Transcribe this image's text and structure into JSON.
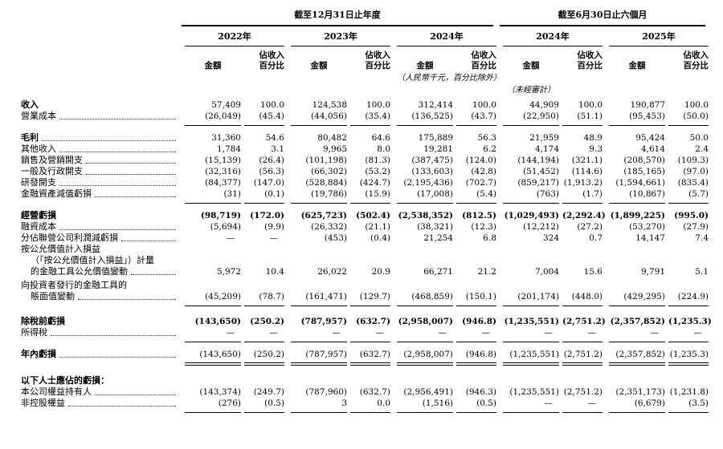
{
  "table": {
    "unit_note": "（人民幣千元，百分比除外）",
    "unaudited_note": "（未經審計）",
    "groups": [
      {
        "title": "截至12月31日止年度",
        "years": [
          "2022年",
          "2023年",
          "2024年"
        ]
      },
      {
        "title": "截至6月30日止六個月",
        "years": [
          "2024年",
          "2025年"
        ]
      }
    ],
    "col_headers": {
      "amount": "金額",
      "pct_line1": "佔收入",
      "pct_line2": "百分比"
    },
    "rows": [
      {
        "label_lines": [
          "收入"
        ],
        "bold_label": true,
        "dots": false,
        "values": [
          "57,409",
          "100.0",
          "124,538",
          "100.0",
          "312,414",
          "100.0",
          "44,909",
          "100.0",
          "190,877",
          "100.0"
        ]
      },
      {
        "label_lines": [
          "營業成本"
        ],
        "dots": true,
        "values": [
          "(26,049)",
          "(45.4)",
          "(44,056)",
          "(35.4)",
          "(136,525)",
          "(43.7)",
          "(22,950)",
          "(51.1)",
          "(95,453)",
          "(50.0)"
        ]
      },
      {
        "type": "rule"
      },
      {
        "type": "gap",
        "h": 4
      },
      {
        "label_lines": [
          "毛利"
        ],
        "bold_label": true,
        "dots": true,
        "values": [
          "31,360",
          "54.6",
          "80,482",
          "64.6",
          "175,889",
          "56.3",
          "21,959",
          "48.9",
          "95,424",
          "50.0"
        ]
      },
      {
        "label_lines": [
          "其他收入"
        ],
        "dots": true,
        "values": [
          "1,784",
          "3.1",
          "9,965",
          "8.0",
          "19,281",
          "6.2",
          "4,174",
          "9.3",
          "4,614",
          "2.4"
        ]
      },
      {
        "label_lines": [
          "銷售及營銷開支"
        ],
        "dots": true,
        "values": [
          "(15,139)",
          "(26.4)",
          "(101,198)",
          "(81.3)",
          "(387,475)",
          "(124.0)",
          "(144,194)",
          "(321.1)",
          "(208,570)",
          "(109.3)"
        ]
      },
      {
        "label_lines": [
          "一般及行政開支"
        ],
        "dots": true,
        "values": [
          "(32,316)",
          "(56.3)",
          "(66,302)",
          "(53.2)",
          "(133,603)",
          "(42.8)",
          "(51,452)",
          "(114.6)",
          "(185,165)",
          "(97.0)"
        ]
      },
      {
        "label_lines": [
          "研發開支"
        ],
        "dots": true,
        "values": [
          "(84,377)",
          "(147.0)",
          "(528,884)",
          "(424.7)",
          "(2,195,436)",
          "(702.7)",
          "(859,217)",
          "(1,913.2)",
          "(1,594,661)",
          "(835.4)"
        ]
      },
      {
        "label_lines": [
          "金融資產減值虧損"
        ],
        "dots": true,
        "values": [
          "(31)",
          "(0.1)",
          "(19,786)",
          "(15.9)",
          "(17,008)",
          "(5.4)",
          "(763)",
          "(1.7)",
          "(10,867)",
          "(5.7)"
        ]
      },
      {
        "type": "rule"
      },
      {
        "type": "gap",
        "h": 4
      },
      {
        "label_lines": [
          "經營虧損"
        ],
        "bold_label": true,
        "bold_values": true,
        "dots": false,
        "values": [
          "(98,719)",
          "(172.0)",
          "(625,723)",
          "(502.4)",
          "(2,538,352)",
          "(812.5)",
          "(1,029,493)",
          "(2,292.4)",
          "(1,899,225)",
          "(995.0)"
        ]
      },
      {
        "label_lines": [
          "融資成本"
        ],
        "dots": true,
        "values": [
          "(5,694)",
          "(9.9)",
          "(26,332)",
          "(21.1)",
          "(38,321)",
          "(12.3)",
          "(12,212)",
          "(27.2)",
          "(53,270)",
          "(27.9)"
        ]
      },
      {
        "label_lines": [
          "分佔聯營公司利潤減虧損"
        ],
        "dots": true,
        "values": [
          "—",
          "—",
          "(453)",
          "(0.4)",
          "21,254",
          "6.8",
          "324",
          "0.7",
          "14,147",
          "7.4"
        ]
      },
      {
        "label_lines": [
          "按公允價值計入損益",
          "（「按公允價值計入損益」）計量",
          "的金融工具公允價值變動"
        ],
        "dots": true,
        "values": [
          "5,972",
          "10.4",
          "26,022",
          "20.9",
          "66,271",
          "21.2",
          "7,004",
          "15.6",
          "9,791",
          "5.1"
        ]
      },
      {
        "type": "gap",
        "h": 3
      },
      {
        "label_lines": [
          "向投資者發行的金融工具的",
          "賬面值變動"
        ],
        "dots": true,
        "values": [
          "(45,209)",
          "(78.7)",
          "(161,471)",
          "(129.7)",
          "(468,859)",
          "(150.1)",
          "(201,174)",
          "(448.0)",
          "(429,295)",
          "(224.9)"
        ]
      },
      {
        "type": "rule"
      },
      {
        "type": "gap",
        "h": 8
      },
      {
        "label_lines": [
          "除稅前虧損"
        ],
        "bold_label": true,
        "bold_values": true,
        "dots": false,
        "values": [
          "(143,650)",
          "(250.2)",
          "(787,957)",
          "(632.7)",
          "(2,958,007)",
          "(946.8)",
          "(1,235,551)",
          "(2,751.2)",
          "(2,357,852)",
          "(1,235.3)"
        ]
      },
      {
        "label_lines": [
          "所得稅"
        ],
        "dots": true,
        "values": [
          "—",
          "—",
          "—",
          "—",
          "—",
          "—",
          "—",
          "—",
          "—",
          "—"
        ]
      },
      {
        "type": "rule"
      },
      {
        "type": "gap",
        "h": 4
      },
      {
        "label_lines": [
          "年內虧損"
        ],
        "bold_label": true,
        "dots": true,
        "values": [
          "(143,650)",
          "(250.2)",
          "(787,957)",
          "(632.7)",
          "(2,958,007)",
          "(946.8)",
          "(1,235,551)",
          "(2,751.2)",
          "(2,357,852)",
          "(1,235.3)"
        ]
      },
      {
        "type": "rule-double"
      },
      {
        "type": "gap",
        "h": 10
      },
      {
        "label_lines": [
          "以下人士應佔的虧損："
        ],
        "bold_label": true,
        "dots": false,
        "values": []
      },
      {
        "label_lines": [
          "本公司權益持有人"
        ],
        "dots": true,
        "values": [
          "(143,374)",
          "(249.7)",
          "(787,960)",
          "(632.7)",
          "(2,956,491)",
          "(946.3)",
          "(1,235,551)",
          "(2,751.2)",
          "(2,351,173)",
          "(1,231.8)"
        ]
      },
      {
        "label_lines": [
          "非控股權益"
        ],
        "dots": true,
        "values": [
          "(276)",
          "(0.5)",
          "3",
          "0.0",
          "(1,516)",
          "(0.5)",
          "—",
          "—",
          "(6,679)",
          "(3.5)"
        ]
      },
      {
        "type": "rule"
      }
    ]
  }
}
